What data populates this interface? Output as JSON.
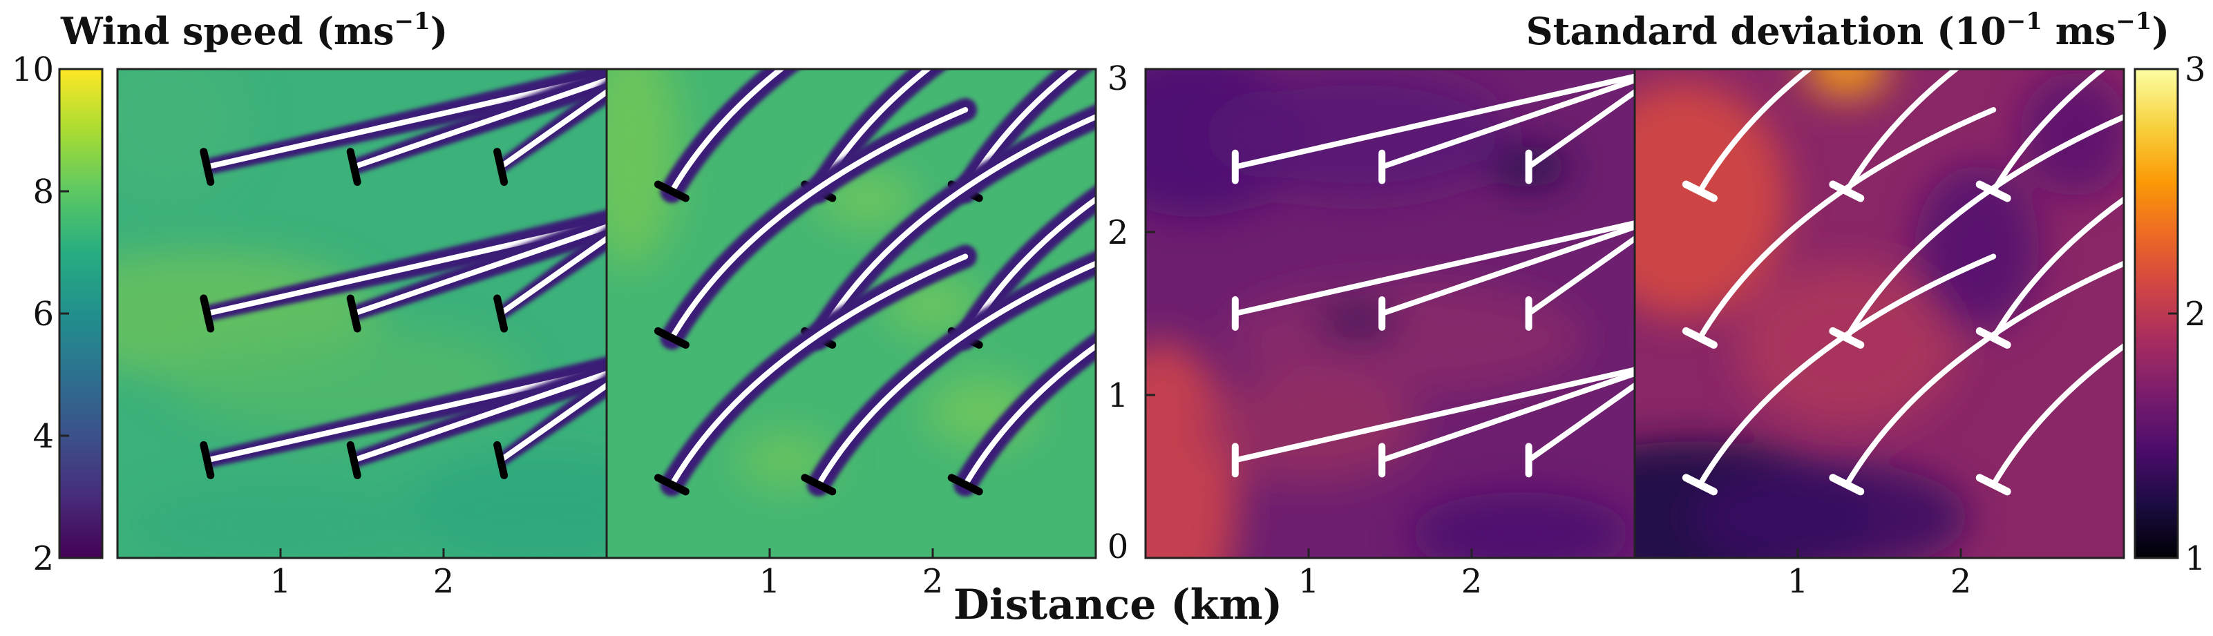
{
  "titles": {
    "left_prefix": "Wind speed (ms",
    "left_exp": "−1",
    "left_suffix": ")",
    "right_a": "Standard deviation (10",
    "right_exp1": "−1",
    "right_b": " ms",
    "right_exp2": "−1",
    "right_c": ")"
  },
  "xlabel": "Distance (km)",
  "colors": {
    "viridis": [
      "#440154",
      "#472c7a",
      "#3b518b",
      "#2c718e",
      "#21908d",
      "#27ad81",
      "#5cc863",
      "#aadc32",
      "#fde725"
    ],
    "inferno": [
      "#000004",
      "#1b0c42",
      "#4b0c6b",
      "#781c6d",
      "#a52c60",
      "#cf4446",
      "#ed6925",
      "#fb9a06",
      "#f7d03c",
      "#fcffa4"
    ],
    "wake_lines": "#ffffff",
    "rotor_left": "#000000",
    "rotor_right": "#ffffff"
  },
  "chart_data": [
    {
      "type": "heatmap",
      "name": "wind-speed-aligned",
      "xlim": [
        0,
        3
      ],
      "ylim": [
        0,
        3
      ],
      "xticks": [
        "1",
        "2"
      ],
      "colorbar": {
        "min": 2,
        "max": 10,
        "ticks": [
          "2",
          "4",
          "6",
          "8",
          "10"
        ],
        "colormap": "viridis"
      },
      "background_speed_ms": 7.3,
      "turbines": [
        [
          0.6,
          2.45
        ],
        [
          1.5,
          2.45
        ],
        [
          2.4,
          2.45
        ],
        [
          0.6,
          1.55
        ],
        [
          1.5,
          1.55
        ],
        [
          2.4,
          1.55
        ],
        [
          0.6,
          0.65
        ],
        [
          1.5,
          0.65
        ],
        [
          2.4,
          0.65
        ]
      ],
      "yaw": "misaligned-straight"
    },
    {
      "type": "heatmap",
      "name": "wind-speed-curved",
      "xlim": [
        0,
        3
      ],
      "ylim": [
        0,
        3
      ],
      "xticks": [
        "1",
        "2"
      ],
      "background_speed_ms": 7.0,
      "turbines": [
        [
          0.6,
          2.45
        ],
        [
          1.5,
          2.45
        ],
        [
          2.4,
          2.45
        ],
        [
          0.6,
          1.55
        ],
        [
          1.5,
          1.55
        ],
        [
          2.4,
          1.55
        ],
        [
          0.6,
          0.65
        ],
        [
          1.5,
          0.65
        ],
        [
          2.4,
          0.65
        ]
      ],
      "yaw": "curved-wakes"
    },
    {
      "type": "heatmap",
      "name": "std-dev-aligned",
      "xlim": [
        0,
        3
      ],
      "ylim": [
        0,
        3
      ],
      "xticks": [
        "1",
        "2"
      ],
      "yticks": [
        "0",
        "1",
        "2",
        "3"
      ],
      "turbines": [
        [
          0.6,
          2.45
        ],
        [
          1.5,
          2.45
        ],
        [
          2.4,
          2.45
        ],
        [
          0.6,
          1.55
        ],
        [
          1.5,
          1.55
        ],
        [
          2.4,
          1.55
        ],
        [
          0.6,
          0.65
        ],
        [
          1.5,
          0.65
        ],
        [
          2.4,
          0.65
        ]
      ]
    },
    {
      "type": "heatmap",
      "name": "std-dev-curved",
      "xlim": [
        0,
        3
      ],
      "ylim": [
        0,
        3
      ],
      "xticks": [
        "1",
        "2"
      ],
      "colorbar": {
        "min": 1,
        "max": 3,
        "ticks": [
          "1",
          "2",
          "3"
        ],
        "colormap": "inferno"
      },
      "turbines": [
        [
          0.6,
          2.45
        ],
        [
          1.5,
          2.45
        ],
        [
          2.4,
          2.45
        ],
        [
          0.6,
          1.55
        ],
        [
          1.5,
          1.55
        ],
        [
          2.4,
          1.55
        ],
        [
          0.6,
          0.65
        ],
        [
          1.5,
          0.65
        ],
        [
          2.4,
          0.65
        ]
      ]
    }
  ]
}
